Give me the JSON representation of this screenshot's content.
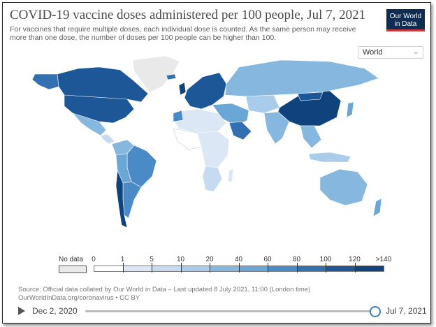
{
  "title": "COVID-19 vaccine doses administered per 100 people, Jul 7, 2021",
  "subtitle": "For vaccines that require multiple doses, each individual dose is counted. As the same person may receive more than one dose, the number of doses per 100 people can be higher than 100.",
  "logo": {
    "line1": "Our World",
    "line2": "in Data"
  },
  "region_select": {
    "value": "World"
  },
  "legend": {
    "nodata_label": "No data",
    "ticks": [
      "0",
      "1",
      "5",
      "10",
      "20",
      "40",
      "60",
      "80",
      "100",
      "120",
      ">140"
    ],
    "bin_colors": [
      "#ffffff",
      "#dbe7f5",
      "#c6dbef",
      "#a8ccea",
      "#85b7df",
      "#6aa6d6",
      "#4a8ac6",
      "#3370b1",
      "#1d5798",
      "#10427d"
    ],
    "nodata_color": "#e9e9e9"
  },
  "source": {
    "line1": "Source: Official data collated by Our World in Data – Last updated 8 July 2021, 11:00 (London time)",
    "line2": "OurWorldInData.org/coronavirus • CC BY"
  },
  "timeline": {
    "start_label": "Dec 2, 2020",
    "end_label": "Jul 7, 2021",
    "position_fraction": 1.0
  }
}
